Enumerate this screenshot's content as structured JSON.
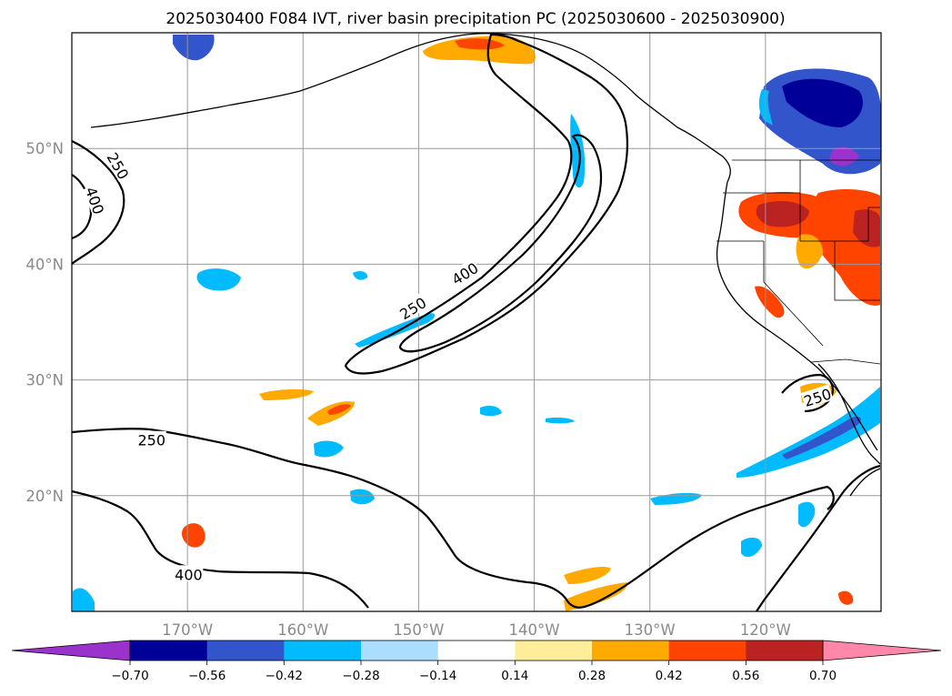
{
  "title": "2025030400 F084 IVT, river basin precipitation PC (2025030600 - 2025030900)",
  "map": {
    "lon_range": [
      -180,
      -110
    ],
    "lat_range": [
      10,
      60
    ],
    "lon_ticks": [
      {
        "value": -170,
        "label": "170°W"
      },
      {
        "value": -160,
        "label": "160°W"
      },
      {
        "value": -150,
        "label": "150°W"
      },
      {
        "value": -140,
        "label": "140°W"
      },
      {
        "value": -130,
        "label": "130°W"
      },
      {
        "value": -120,
        "label": "120°W"
      }
    ],
    "lat_ticks": [
      {
        "value": 20,
        "label": "20°N"
      },
      {
        "value": 30,
        "label": "30°N"
      },
      {
        "value": 40,
        "label": "40°N"
      },
      {
        "value": 50,
        "label": "50°N"
      }
    ],
    "gridlines": true,
    "ivt_contour_labels": [
      {
        "text": "250",
        "lon": -176,
        "lat": 48.5,
        "rot": 60
      },
      {
        "text": "400",
        "lon": -178,
        "lat": 45.5,
        "rot": 70
      },
      {
        "text": "250",
        "lon": -150.5,
        "lat": 36.2,
        "rot": -32
      },
      {
        "text": "400",
        "lon": -146,
        "lat": 39.2,
        "rot": -32
      },
      {
        "text": "250",
        "lon": -173.1,
        "lat": 24.8,
        "rot": 0
      },
      {
        "text": "400",
        "lon": -169.9,
        "lat": 13.2,
        "rot": 0
      },
      {
        "text": "250",
        "lon": -115.5,
        "lat": 28.5,
        "rot": -18
      }
    ]
  },
  "colorbar": {
    "boundaries": [
      -0.7,
      -0.56,
      -0.42,
      -0.28,
      -0.14,
      0.14,
      0.28,
      0.42,
      0.56,
      0.7
    ],
    "tick_labels": [
      "−0.70",
      "−0.56",
      "−0.42",
      "−0.28",
      "−0.14",
      "0.14",
      "0.28",
      "0.42",
      "0.56",
      "0.70"
    ],
    "colors": [
      "#9933cc",
      "#000099",
      "#3355cc",
      "#00bbff",
      "#aaddff",
      "#ffffff",
      "#ffee99",
      "#ffaa00",
      "#ff4400",
      "#bb2222",
      "#ff88aa"
    ],
    "extend": "both"
  }
}
